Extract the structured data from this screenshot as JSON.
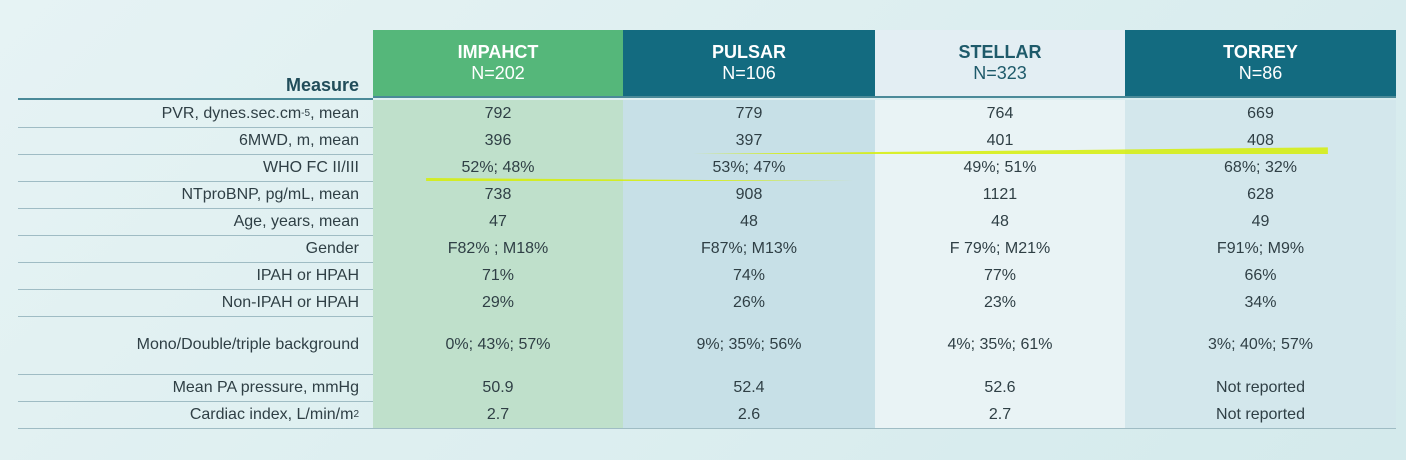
{
  "header": {
    "measure_label": "Measure",
    "trials": [
      {
        "name": "IMPAHCT",
        "n": "N=202"
      },
      {
        "name": "PULSAR",
        "n": "N=106"
      },
      {
        "name": "STELLAR",
        "n": "N=323"
      },
      {
        "name": "TORREY",
        "n": "N=86"
      }
    ]
  },
  "rows": [
    {
      "label": "PVR, dynes.sec.cm",
      "label_sup": "-5",
      "label_after": ", mean",
      "values": [
        "792",
        "779",
        "764",
        "669"
      ]
    },
    {
      "label": "6MWD, m, mean",
      "values": [
        "396",
        "397",
        "401",
        "408"
      ],
      "highlighted": true
    },
    {
      "label": "WHO FC II/III",
      "values": [
        "52%; 48%",
        "53%; 47%",
        "49%; 51%",
        "68%; 32%"
      ],
      "highlighted": true
    },
    {
      "label": "NTproBNP, pg/mL, mean",
      "values": [
        "738",
        "908",
        "1121",
        "628"
      ],
      "highlighted": true
    },
    {
      "label": "Age, years, mean",
      "values": [
        "47",
        "48",
        "48",
        "49"
      ]
    },
    {
      "label": "Gender",
      "values": [
        "F82% ; M18%",
        "F87%; M13%",
        "F 79%; M21%",
        "F91%; M9%"
      ]
    },
    {
      "label": "IPAH or HPAH",
      "values": [
        "71%",
        "74%",
        "77%",
        "66%"
      ]
    },
    {
      "label": "Non-IPAH or HPAH",
      "values": [
        "29%",
        "26%",
        "23%",
        "34%"
      ]
    },
    {
      "label": "Mono/Double/triple background",
      "values": [
        "0%; 43%; 57%",
        "9%; 35%; 56%",
        "4%; 35%; 61%",
        "3%; 40%; 57%"
      ]
    },
    {
      "label": "Mean PA pressure, mmHg",
      "values": [
        "50.9",
        "52.4",
        "52.6",
        "Not reported"
      ]
    },
    {
      "label": "Cardiac index, L/min/m",
      "label_sup": "2",
      "values": [
        "2.7",
        "2.6",
        "2.7",
        "Not reported"
      ]
    }
  ],
  "colors": {
    "impahct_header": "#55b77a",
    "pulsar_header": "#136b80",
    "stellar_header": "#e3eef3",
    "torrey_header": "#136b80",
    "highlight": "#d6ee00"
  }
}
